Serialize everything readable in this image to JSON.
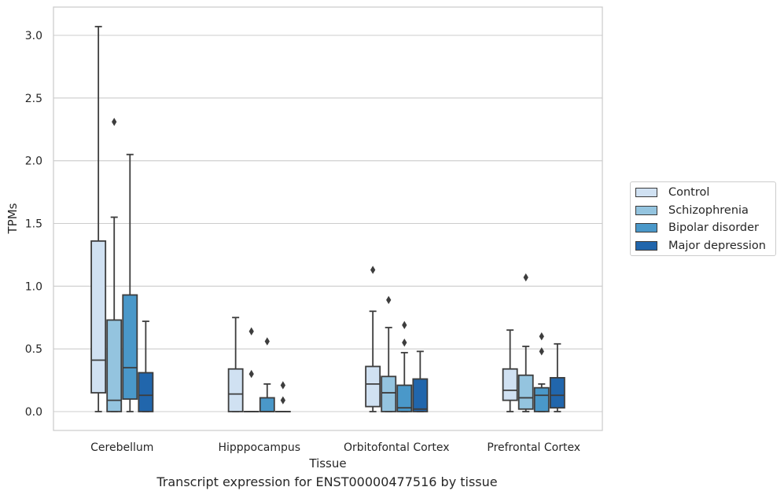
{
  "chart_data": {
    "type": "box",
    "xlabel": "Tissue",
    "ylabel": "TPMs",
    "caption": "Transcript expression for ENST00000477516 by tissue",
    "ylim": [
      -0.15,
      3.22
    ],
    "yticks": [
      "0.0",
      "0.5",
      "1.0",
      "1.5",
      "2.0",
      "2.5",
      "3.0"
    ],
    "grid": true,
    "legend_position": "right",
    "categories": [
      "Cerebellum",
      "Hipppocampus",
      "Orbitofontal Cortex",
      "Prefrontal Cortex"
    ],
    "series": [
      {
        "name": "Control",
        "color": "#d0e1f2",
        "boxes": [
          {
            "min": 0.0,
            "q1": 0.15,
            "median": 0.41,
            "q3": 1.36,
            "max": 3.07,
            "outliers": []
          },
          {
            "min": 0.0,
            "q1": 0.0,
            "median": 0.14,
            "q3": 0.34,
            "max": 0.75,
            "outliers": []
          },
          {
            "min": 0.0,
            "q1": 0.04,
            "median": 0.22,
            "q3": 0.36,
            "max": 0.8,
            "outliers": [
              1.13
            ]
          },
          {
            "min": 0.0,
            "q1": 0.09,
            "median": 0.17,
            "q3": 0.34,
            "max": 0.65,
            "outliers": []
          }
        ]
      },
      {
        "name": "Schizophrenia",
        "color": "#94c4df",
        "boxes": [
          {
            "min": 0.0,
            "q1": 0.0,
            "median": 0.09,
            "q3": 0.73,
            "max": 1.55,
            "outliers": [
              2.31
            ]
          },
          {
            "min": 0.0,
            "q1": 0.0,
            "median": 0.0,
            "q3": 0.0,
            "max": 0.0,
            "outliers": [
              0.64,
              0.3
            ]
          },
          {
            "min": 0.0,
            "q1": 0.0,
            "median": 0.15,
            "q3": 0.28,
            "max": 0.67,
            "outliers": [
              0.89
            ]
          },
          {
            "min": 0.0,
            "q1": 0.02,
            "median": 0.11,
            "q3": 0.29,
            "max": 0.52,
            "outliers": [
              1.07
            ]
          }
        ]
      },
      {
        "name": "Bipolar disorder",
        "color": "#4a98c9",
        "boxes": [
          {
            "min": 0.0,
            "q1": 0.1,
            "median": 0.35,
            "q3": 0.93,
            "max": 2.05,
            "outliers": []
          },
          {
            "min": 0.0,
            "q1": 0.0,
            "median": 0.0,
            "q3": 0.11,
            "max": 0.22,
            "outliers": [
              0.56
            ]
          },
          {
            "min": 0.0,
            "q1": 0.0,
            "median": 0.03,
            "q3": 0.21,
            "max": 0.47,
            "outliers": [
              0.69,
              0.55
            ]
          },
          {
            "min": 0.0,
            "q1": 0.0,
            "median": 0.13,
            "q3": 0.19,
            "max": 0.22,
            "outliers": [
              0.6,
              0.48
            ]
          }
        ]
      },
      {
        "name": "Major depression",
        "color": "#2166ac",
        "boxes": [
          {
            "min": 0.0,
            "q1": 0.0,
            "median": 0.13,
            "q3": 0.31,
            "max": 0.72,
            "outliers": []
          },
          {
            "min": 0.0,
            "q1": 0.0,
            "median": 0.0,
            "q3": 0.0,
            "max": 0.0,
            "outliers": [
              0.21,
              0.09
            ]
          },
          {
            "min": 0.0,
            "q1": 0.0,
            "median": 0.02,
            "q3": 0.26,
            "max": 0.48,
            "outliers": []
          },
          {
            "min": 0.0,
            "q1": 0.03,
            "median": 0.13,
            "q3": 0.27,
            "max": 0.54,
            "outliers": []
          }
        ]
      }
    ]
  }
}
